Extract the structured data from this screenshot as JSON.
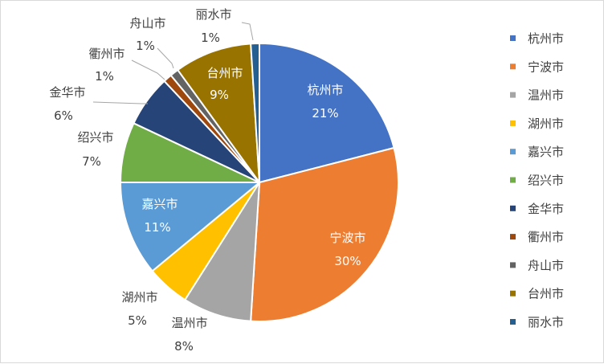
{
  "chart_data": {
    "type": "pie",
    "title": "",
    "categories": [
      "杭州市",
      "宁波市",
      "温州市",
      "湖州市",
      "嘉兴市",
      "绍兴市",
      "金华市",
      "衢州市",
      "舟山市",
      "台州市",
      "丽水市"
    ],
    "values": [
      21,
      30,
      8,
      5,
      11,
      7,
      6,
      1,
      1,
      9,
      1
    ],
    "value_labels": [
      "21%",
      "30%",
      "8%",
      "5%",
      "11%",
      "7%",
      "6%",
      "1%",
      "1%",
      "9%",
      "1%"
    ],
    "colors": [
      "#4472C4",
      "#ED7D31",
      "#A5A5A5",
      "#FFC000",
      "#5B9BD5",
      "#70AD47",
      "#264478",
      "#9E480E",
      "#636363",
      "#997300",
      "#255E91"
    ],
    "legend_position": "right",
    "start_angle_deg": 0,
    "direction": "clockwise"
  }
}
